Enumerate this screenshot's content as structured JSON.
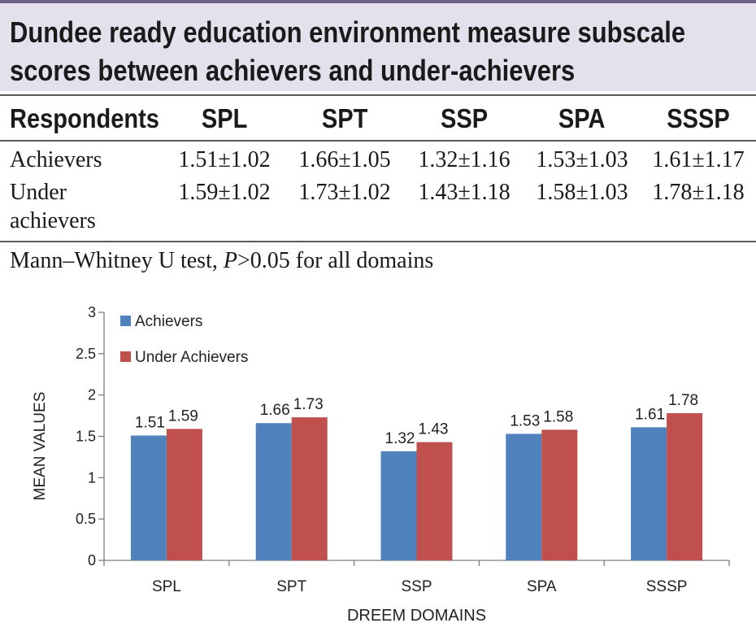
{
  "table": {
    "title_line1": "Dundee ready education environment measure subscale",
    "title_line2": "scores between achievers and under-achievers",
    "headers": [
      "Respondents",
      "SPL",
      "SPT",
      "SSP",
      "SPA",
      "SSSP"
    ],
    "rows": [
      {
        "label_line1": "Achievers",
        "label_line2": "",
        "cells": [
          "1.51±1.02",
          "1.66±1.05",
          "1.32±1.16",
          "1.53±1.03",
          "1.61±1.17"
        ]
      },
      {
        "label_line1": "Under",
        "label_line2": "achievers",
        "cells": [
          "1.59±1.02",
          "1.73±1.02",
          "1.43±1.18",
          "1.58±1.03",
          "1.78±1.18"
        ]
      }
    ],
    "note_prefix": "Mann–Whitney U test, ",
    "note_p": "P",
    "note_suffix": ">0.05 for all domains"
  },
  "chart_data": {
    "type": "bar",
    "title": "",
    "xlabel": "DREEM DOMAINS",
    "ylabel": "MEAN VALUES",
    "categories": [
      "SPL",
      "SPT",
      "SSP",
      "SPA",
      "SSSP"
    ],
    "series": [
      {
        "name": "Achievers",
        "color": "#4f81bd",
        "values": [
          1.51,
          1.66,
          1.32,
          1.53,
          1.61
        ]
      },
      {
        "name": "Under Achievers",
        "color": "#c0504d",
        "values": [
          1.59,
          1.73,
          1.43,
          1.58,
          1.78
        ]
      }
    ],
    "data_labels": [
      [
        "1.51",
        "1.66",
        "1.32",
        "1.53",
        "1.61"
      ],
      [
        "1.59",
        "1.73",
        "1.43",
        "1.58",
        "1.78"
      ]
    ],
    "ylim": [
      0,
      3
    ],
    "yticks": [
      0,
      0.5,
      1,
      1.5,
      2,
      2.5,
      3
    ],
    "ytick_labels": [
      "0",
      "0.5",
      "1",
      "1.5",
      "2",
      "2.5",
      "3"
    ],
    "grid": false,
    "legend_position": "top-left"
  }
}
